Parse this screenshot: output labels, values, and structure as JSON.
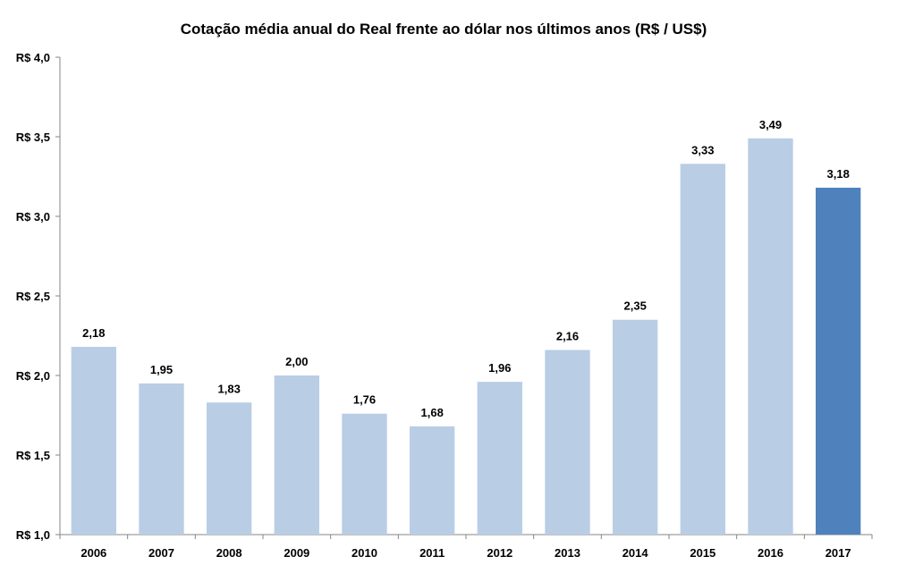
{
  "chart_data": {
    "type": "bar",
    "title": "Cotação média anual do Real frente ao dólar nos últimos anos (R$ / US$)",
    "xlabel": "",
    "ylabel": "",
    "categories": [
      "2006",
      "2007",
      "2008",
      "2009",
      "2010",
      "2011",
      "2012",
      "2013",
      "2014",
      "2015",
      "2016",
      "2017"
    ],
    "values": [
      2.18,
      1.95,
      1.83,
      2.0,
      1.76,
      1.68,
      1.96,
      2.16,
      2.35,
      3.33,
      3.49,
      3.18
    ],
    "data_labels": [
      "2,18",
      "1,95",
      "1,83",
      "2,00",
      "1,76",
      "1,68",
      "1,96",
      "2,16",
      "2,35",
      "3,33",
      "3,49",
      "3,18"
    ],
    "ylim": [
      1.0,
      4.0
    ],
    "yticks": [
      1.0,
      1.5,
      2.0,
      2.5,
      3.0,
      3.5,
      4.0
    ],
    "ytick_labels": [
      "R$ 1,0",
      "R$ 1,5",
      "R$ 2,0",
      "R$ 2,5",
      "R$ 3,0",
      "R$ 3,5",
      "R$ 4,0"
    ],
    "grid": false,
    "legend": "none",
    "colors": {
      "bar": "#b9cde5",
      "highlight_bar": "#4f81bd",
      "axis": "#868686"
    },
    "highlight_category": "2017"
  }
}
